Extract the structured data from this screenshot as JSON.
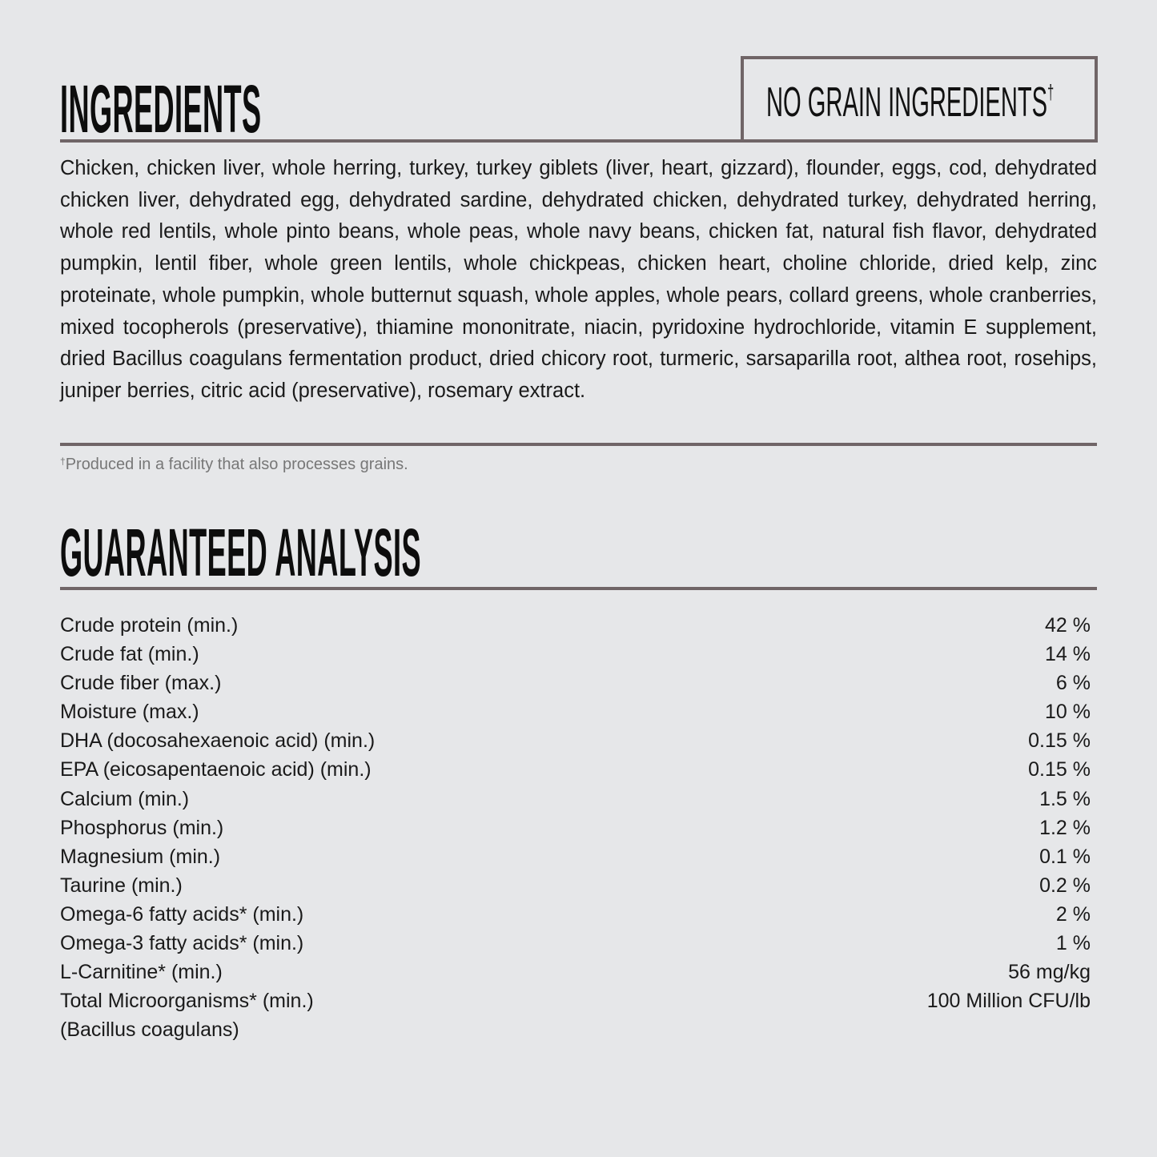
{
  "ingredients": {
    "heading": "INGREDIENTS",
    "badge": "NO GRAIN INGREDIENTS",
    "badge_mark": "†",
    "text": "Chicken, chicken liver, whole herring, turkey, turkey giblets (liver, heart, gizzard), flounder, eggs, cod, dehydrated chicken liver, dehydrated egg, dehydrated sardine, dehydrated chicken, dehydrated turkey, dehydrated herring, whole red lentils, whole pinto beans, whole peas, whole navy beans, chicken fat, natural fish flavor, dehydrated pumpkin, lentil fiber, whole green lentils, whole chickpeas, chicken heart, choline chloride, dried kelp, zinc proteinate, whole pumpkin, whole butternut squash, whole apples, whole pears, collard greens, whole cranberries, mixed tocopherols (preservative), thiamine mononitrate, niacin, pyridoxine hydrochloride, vitamin E supplement, dried Bacillus coagulans fermentation product, dried chicory root, turmeric, sarsaparilla root, althea root, rosehips, juniper berries, citric acid (preservative), rosemary extract.",
    "footnote_mark": "†",
    "footnote": "Produced in a facility that also processes grains."
  },
  "analysis": {
    "heading": "GUARANTEED ANALYSIS",
    "rows": [
      {
        "label": "Crude protein (min.)",
        "value": "42 %"
      },
      {
        "label": "Crude fat (min.)",
        "value": "14 %"
      },
      {
        "label": "Crude fiber (max.)",
        "value": "6 %"
      },
      {
        "label": "Moisture (max.)",
        "value": "10 %"
      },
      {
        "label": "DHA (docosahexaenoic acid) (min.)",
        "value": "0.15 %"
      },
      {
        "label": "EPA (eicosapentaenoic acid) (min.)",
        "value": "0.15 %"
      },
      {
        "label": "Calcium (min.)",
        "value": "1.5 %"
      },
      {
        "label": "Phosphorus (min.)",
        "value": "1.2 %"
      },
      {
        "label": "Magnesium (min.)",
        "value": "0.1 %"
      },
      {
        "label": "Taurine (min.)",
        "value": "0.2 %"
      },
      {
        "label": "Omega-6 fatty acids* (min.)",
        "value": "2 %"
      },
      {
        "label": "Omega-3 fatty acids* (min.)",
        "value": "1 %"
      },
      {
        "label": "L-Carnitine* (min.)",
        "value": "56 mg/kg"
      },
      {
        "label": "Total Microorganisms* (min.)",
        "value": "100 Million CFU/lb"
      },
      {
        "label": "(Bacillus coagulans)",
        "value": ""
      }
    ]
  },
  "colors": {
    "background": "#e6e7e9",
    "rule": "#706567",
    "text": "#111111",
    "footnote": "#777777"
  }
}
